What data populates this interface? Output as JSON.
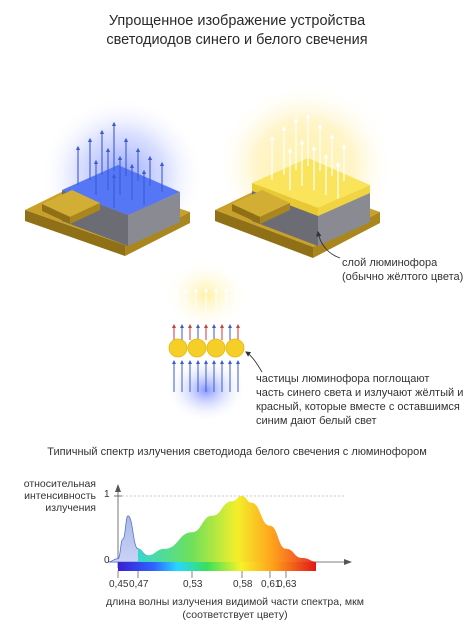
{
  "title": {
    "line1": "Упрощенное изображение устройства",
    "line2": "светодиодов синего и белого свечения"
  },
  "phosphor_layer_label": {
    "line1": "слой люминофора",
    "line2": "(обычно жёлтого цвета)"
  },
  "particles_label": {
    "line1": "частицы люминофора поглощают",
    "line2": "часть синего света и излучают жёлтый и",
    "line3": "красный, которые вместе с оставшимся",
    "line4": "синим дают белый свет"
  },
  "spectrum": {
    "title": "Типичный спектр излучения светодиода белого свечения с люминофором",
    "ylabel": {
      "line1": "относительная",
      "line2": "интенсивность",
      "line3": "излучения"
    },
    "y_tick_1": "1",
    "y_tick_0": "0",
    "x_ticks": [
      "0,45",
      "0,47",
      "0,53",
      "0,58",
      "0,61",
      "0,63"
    ],
    "xlabel": {
      "line1": "длина волны излучения видимой части спектра, мкм",
      "line2": "(соответствует цвету)"
    }
  },
  "chart_data": {
    "type": "area",
    "xlabel": "длина волны излучения видимой части спектра, мкм",
    "ylabel": "относительная интенсивность излучения",
    "ylim": [
      0,
      1
    ],
    "x_ticks": [
      0.45,
      0.47,
      0.53,
      0.58,
      0.61,
      0.63
    ],
    "series": [
      {
        "x": [
          0.44,
          0.45,
          0.455,
          0.46,
          0.47,
          0.48,
          0.5,
          0.53,
          0.55,
          0.57,
          0.58,
          0.59,
          0.61,
          0.63,
          0.65,
          0.67
        ],
        "values": [
          0,
          0.05,
          0.35,
          0.7,
          0.2,
          0.1,
          0.2,
          0.45,
          0.7,
          0.92,
          1.0,
          0.9,
          0.55,
          0.2,
          0.06,
          0
        ]
      }
    ]
  },
  "colors": {
    "blue_glow": "#4f6bff",
    "yellow_glow": "#ffe36b",
    "substrate": "#c9a12a",
    "chip_side": "#7f7f88",
    "chip_top_blue": "#5577f5",
    "chip_top_yellow": "#f7e25c",
    "phosphor_particle": "#f5cf27"
  }
}
